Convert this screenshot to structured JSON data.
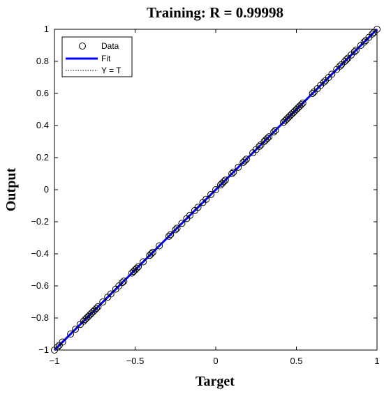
{
  "chart_data": {
    "type": "scatter",
    "title": "Training: R = 0.99998",
    "xlabel": "Target",
    "ylabel": "Output",
    "xlim": [
      -1,
      1
    ],
    "ylim": [
      -1,
      1
    ],
    "x_ticks": [
      "-1",
      "-0.5",
      "0",
      "0.5",
      "1"
    ],
    "y_ticks": [
      "-1",
      "-0.8",
      "-0.6",
      "-0.4",
      "-0.2",
      "0",
      "0.2",
      "0.4",
      "0.6",
      "0.8",
      "1"
    ],
    "grid": false,
    "legend_position": "top-left",
    "legend": [
      "Data",
      "Fit",
      "Y = T"
    ],
    "colors": {
      "fit": "#0000ff",
      "data": "#000000",
      "ideal": "#000000"
    },
    "fit_line": {
      "x": [
        -1,
        1
      ],
      "y": [
        -1,
        1
      ]
    },
    "ideal_line": {
      "x": [
        -1,
        1
      ],
      "y": [
        -1,
        1
      ]
    },
    "series": [
      {
        "name": "Data",
        "x": [
          -1.0,
          -0.98,
          -0.97,
          -0.95,
          -0.9,
          -0.87,
          -0.84,
          -0.82,
          -0.81,
          -0.8,
          -0.79,
          -0.78,
          -0.77,
          -0.76,
          -0.75,
          -0.74,
          -0.73,
          -0.7,
          -0.67,
          -0.65,
          -0.62,
          -0.6,
          -0.58,
          -0.57,
          -0.52,
          -0.51,
          -0.5,
          -0.49,
          -0.48,
          -0.45,
          -0.41,
          -0.4,
          -0.39,
          -0.35,
          -0.29,
          -0.28,
          -0.25,
          -0.24,
          -0.21,
          -0.18,
          -0.16,
          -0.13,
          -0.11,
          -0.08,
          -0.06,
          -0.03,
          0.0,
          0.03,
          0.04,
          0.05,
          0.06,
          0.1,
          0.11,
          0.14,
          0.17,
          0.18,
          0.19,
          0.23,
          0.25,
          0.27,
          0.28,
          0.3,
          0.31,
          0.32,
          0.33,
          0.36,
          0.37,
          0.42,
          0.43,
          0.44,
          0.45,
          0.46,
          0.47,
          0.48,
          0.49,
          0.5,
          0.51,
          0.52,
          0.53,
          0.54,
          0.6,
          0.61,
          0.63,
          0.65,
          0.67,
          0.68,
          0.7,
          0.72,
          0.75,
          0.77,
          0.78,
          0.8,
          0.81,
          0.82,
          0.84,
          0.86,
          0.87,
          0.9,
          0.92,
          0.93,
          0.95,
          0.97,
          0.98,
          1.0
        ],
        "y": [
          -1.0,
          -0.98,
          -0.97,
          -0.95,
          -0.9,
          -0.87,
          -0.84,
          -0.82,
          -0.81,
          -0.8,
          -0.79,
          -0.78,
          -0.77,
          -0.76,
          -0.75,
          -0.74,
          -0.73,
          -0.7,
          -0.67,
          -0.65,
          -0.62,
          -0.6,
          -0.58,
          -0.57,
          -0.52,
          -0.51,
          -0.5,
          -0.49,
          -0.48,
          -0.45,
          -0.41,
          -0.4,
          -0.39,
          -0.35,
          -0.29,
          -0.28,
          -0.25,
          -0.24,
          -0.21,
          -0.18,
          -0.16,
          -0.13,
          -0.11,
          -0.08,
          -0.06,
          -0.03,
          0.0,
          0.03,
          0.04,
          0.05,
          0.06,
          0.1,
          0.11,
          0.14,
          0.17,
          0.18,
          0.19,
          0.23,
          0.25,
          0.27,
          0.28,
          0.3,
          0.31,
          0.32,
          0.33,
          0.36,
          0.37,
          0.42,
          0.43,
          0.44,
          0.45,
          0.46,
          0.47,
          0.48,
          0.49,
          0.5,
          0.51,
          0.52,
          0.53,
          0.54,
          0.6,
          0.61,
          0.63,
          0.65,
          0.67,
          0.68,
          0.7,
          0.72,
          0.75,
          0.77,
          0.78,
          0.8,
          0.81,
          0.82,
          0.84,
          0.86,
          0.87,
          0.9,
          0.92,
          0.93,
          0.95,
          0.97,
          0.98,
          1.0
        ]
      }
    ]
  }
}
